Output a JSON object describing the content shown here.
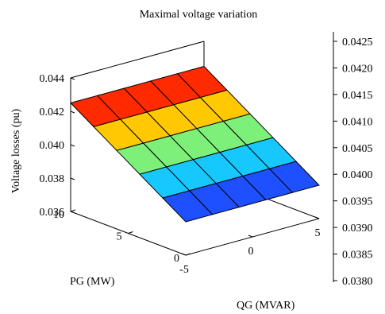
{
  "chart_data": {
    "type": "surface",
    "title": "Maximal voltage variation",
    "zlabel": "Voltage losses (pu)",
    "xlabel": "QG (MVAR)",
    "ylabel": "PG (MW)",
    "x_ticks": [
      "-5",
      "0",
      "5"
    ],
    "y_ticks": [
      "0",
      "5",
      "10"
    ],
    "z_ticks": [
      "0.036",
      "0.038",
      "0.040",
      "0.042",
      "0.044"
    ],
    "colorbar_ticks": [
      "0.0380",
      "0.0385",
      "0.0390",
      "0.0395",
      "0.0400",
      "0.0405",
      "0.0410",
      "0.0415",
      "0.0420",
      "0.0425"
    ],
    "xlim": [
      -5,
      5
    ],
    "ylim": [
      0,
      10
    ],
    "zlim": [
      0.036,
      0.044
    ],
    "grid": false,
    "colormap": "jet",
    "x": [
      -5,
      -3,
      -1,
      1,
      3,
      5
    ],
    "y": [
      0,
      2,
      4,
      6,
      8,
      10
    ],
    "z": [
      [
        0.038,
        0.038,
        0.038,
        0.038,
        0.038,
        0.038
      ],
      [
        0.0389,
        0.0389,
        0.0389,
        0.0389,
        0.0389,
        0.0389
      ],
      [
        0.0398,
        0.0398,
        0.0398,
        0.0398,
        0.0398,
        0.0398
      ],
      [
        0.0407,
        0.0407,
        0.0407,
        0.0407,
        0.0407,
        0.0407
      ],
      [
        0.0416,
        0.0416,
        0.0416,
        0.0416,
        0.0416,
        0.0416
      ],
      [
        0.0425,
        0.0425,
        0.0425,
        0.0425,
        0.0425,
        0.0425
      ]
    ],
    "face_colors": [
      "#1e50ff",
      "#17c8ff",
      "#7df07a",
      "#ffc800",
      "#ff2a00",
      "#8b0000"
    ]
  }
}
